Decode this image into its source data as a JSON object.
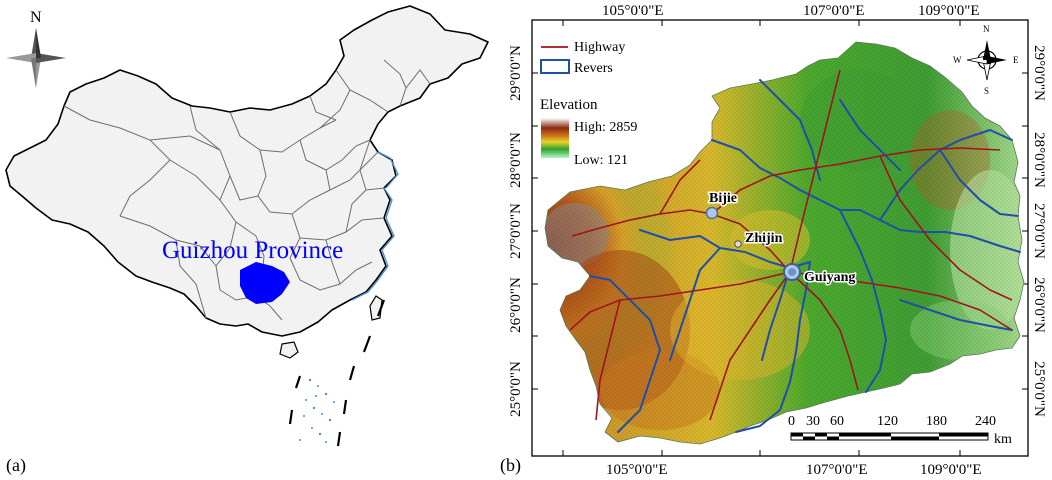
{
  "panel_a": {
    "label": "(a)",
    "north_label": "N",
    "province_label": "Guizhou Province",
    "colors": {
      "province": "#0000ff",
      "land": "#f2f2f2",
      "borders": "#6e6e6e",
      "coast": "#4a8fd4"
    }
  },
  "panel_b": {
    "label": "(b)",
    "top_lon_labels": [
      "105°0'0\"E",
      "107°0'0\"E",
      "109°0'0\"E"
    ],
    "bottom_lon_labels": [
      "105°0'0\"E",
      "107°0'0\"E",
      "109°0'0\"E"
    ],
    "left_lat_labels": [
      "29°0'0\"N",
      "28°0'0\"N",
      "27°0'0\"N",
      "26°0'0\"N",
      "25°0'0\"N"
    ],
    "right_lat_labels": [
      "29°0'0\"N",
      "28°0'0\"N",
      "27°0'0\"N",
      "26°0'0\"N",
      "25°0'0\"N"
    ],
    "legend": {
      "highway_label": "Highway",
      "rivers_label": "Revers",
      "elevation_title": "Elevation",
      "high_label": "High: 2859",
      "low_label": "Low: 121"
    },
    "compass": {
      "n": "N",
      "s": "S",
      "e": "E",
      "w": "W"
    },
    "cities": [
      {
        "name": "Bijie"
      },
      {
        "name": "Zhijin"
      },
      {
        "name": "Guiyang"
      }
    ],
    "scale_bar": {
      "ticks": [
        "0",
        "30",
        "60",
        "120",
        "180",
        "240"
      ],
      "unit": "km"
    },
    "colors": {
      "highway": "#a0141e",
      "river": "#1f4fa8"
    }
  }
}
